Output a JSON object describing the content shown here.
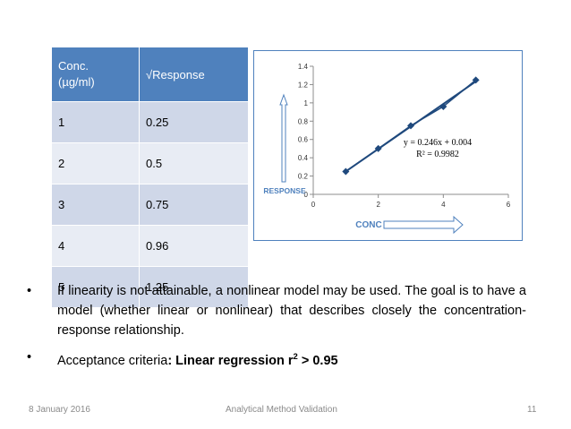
{
  "table": {
    "header": {
      "col1_line1": "Conc.",
      "col1_line2": "(µg/ml)",
      "col2": "√Response"
    },
    "rows": [
      {
        "conc": "1",
        "response": "0.25"
      },
      {
        "conc": "2",
        "response": "0.5"
      },
      {
        "conc": "3",
        "response": "0.75"
      },
      {
        "conc": "4",
        "response": "0.96"
      },
      {
        "conc": "5",
        "response": "1.25"
      }
    ]
  },
  "chart_data": {
    "type": "scatter",
    "x": [
      1,
      2,
      3,
      4,
      5
    ],
    "y": [
      0.25,
      0.5,
      0.75,
      0.96,
      1.25
    ],
    "xlim": [
      0,
      6
    ],
    "ylim": [
      0,
      1.4
    ],
    "x_ticks": [
      "0",
      "2",
      "4",
      "6"
    ],
    "y_ticks": [
      "0",
      "0.2",
      "0.4",
      "0.6",
      "0.8",
      "1",
      "1.2",
      "1.4"
    ],
    "trendline": {
      "equation": "y = 0.246x + 0.004",
      "r2": "R² = 0.9982"
    },
    "xlabel": "CONC",
    "ylabel": "RESPONSE",
    "grid": false,
    "colors": {
      "points": "#1f497d",
      "line": "#1f497d",
      "arrow": "#4f81bd",
      "label": "#4f81bd"
    }
  },
  "bullets": {
    "b1": "If linearity is not attainable, a nonlinear model may be used. The goal is to have a model (whether linear or nonlinear) that describes closely the concentration-response relationship.",
    "b2_prefix": "Acceptance criteria",
    "b2_bold": ": Linear regression r",
    "b2_sup": "2",
    "b2_suffix": " > 0.95"
  },
  "footer": {
    "date": "8 January 2016",
    "title": "Analytical Method Validation",
    "page": "11"
  }
}
